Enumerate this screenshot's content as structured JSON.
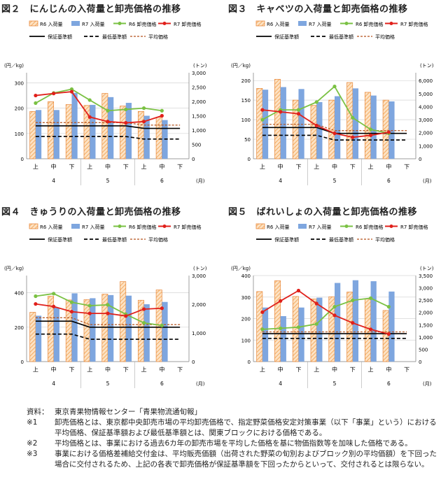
{
  "charts": [
    {
      "title": "図２　にんじんの入荷量と卸売価格の推移",
      "yticks": [
        0,
        100,
        200,
        300
      ],
      "ymax": 340,
      "yunit": "(円／kg)",
      "rticks": [
        0,
        500,
        1000,
        1500,
        2000,
        2500,
        3000
      ],
      "rmax": 3000,
      "runit": "(トン)",
      "r6_qty": [
        1650,
        1990,
        1890,
        1860,
        2280,
        1840,
        1650,
        1450
      ],
      "r7_qty": [
        1700,
        1700,
        2300,
        1880,
        2150,
        1950,
        1500,
        1350
      ],
      "r6_price": [
        220,
        260,
        275,
        232,
        190,
        195,
        200,
        190
      ],
      "r7_price": [
        250,
        258,
        265,
        165,
        147,
        142,
        147,
        170
      ],
      "base": 130,
      "min": 88,
      "avg": 143,
      "dropAt": 6,
      "base2": 120,
      "min2": 78,
      "avg2": 133
    },
    {
      "title": "図３　キャベツの入荷量と卸売価格の推移",
      "yticks": [
        0,
        50,
        100,
        150,
        200
      ],
      "ymax": 220,
      "yunit": "(円／kg)",
      "rticks": [
        0,
        1000,
        2000,
        3000,
        4000,
        5000,
        6000
      ],
      "rmax": 6600,
      "runit": "(トン)",
      "r6_qty": [
        5400,
        6100,
        4500,
        4100,
        4500,
        5850,
        5100,
        4500
      ],
      "r7_qty": [
        5300,
        5500,
        5350,
        4350,
        4800,
        5400,
        4850,
        4400
      ],
      "r6_price": [
        100,
        125,
        125,
        145,
        185,
        105,
        75,
        65
      ],
      "r7_price": [
        125,
        120,
        115,
        85,
        65,
        55,
        60,
        68
      ],
      "base": 80,
      "min": 60,
      "avg": 88,
      "dropAt": 4,
      "base2": 65,
      "min2": 48,
      "avg2": 72
    },
    {
      "title": "図４　きゅうりの入荷量と卸売価格の推移",
      "yticks": [
        0,
        200,
        400
      ],
      "ymax": 500,
      "yunit": "(円／kg)",
      "rticks": [
        0,
        1000,
        2000,
        3000
      ],
      "rmax": 3000,
      "runit": "(トン)",
      "r6_qty": [
        1720,
        2280,
        2150,
        2160,
        2350,
        2790,
        2140,
        2500
      ],
      "r7_qty": [
        1600,
        1880,
        2380,
        2210,
        2320,
        2300,
        2000,
        2080
      ],
      "r6_price": [
        380,
        395,
        345,
        325,
        330,
        275,
        225,
        210
      ],
      "r7_price": [
        335,
        320,
        290,
        280,
        280,
        265,
        305,
        310
      ],
      "base": 235,
      "min": 160,
      "avg": 255,
      "dropAt": 3,
      "base2": 200,
      "min2": 130,
      "avg2": 215
    },
    {
      "title": "図５　ばれいしょの入荷量と卸売価格の推移",
      "yticks": [
        0,
        100,
        200,
        300,
        400
      ],
      "ymax": 400,
      "yunit": "(円／kg)",
      "rticks": [
        0,
        500,
        1000,
        1500,
        2000,
        2500,
        3000,
        3500
      ],
      "rmax": 3500,
      "runit": "(トン)",
      "r6_qty": [
        2850,
        3290,
        2650,
        2550,
        2640,
        2830,
        2550,
        2080
      ],
      "r7_qty": [
        2200,
        1850,
        2200,
        2600,
        3200,
        3310,
        3270,
        2850
      ],
      "r6_price": [
        150,
        155,
        160,
        175,
        255,
        285,
        295,
        255
      ],
      "r7_price": [
        230,
        282,
        330,
        270,
        215,
        180,
        150,
        128
      ],
      "base": 130,
      "min": 108,
      "avg": 138,
      "dropAt": 9,
      "base2": 130,
      "min2": 108,
      "avg2": 138
    }
  ],
  "legend": {
    "r6_qty": "R6 入荷量",
    "r7_qty": "R7 入荷量",
    "r6_price": "R6 卸売価格",
    "r7_price": "R7 卸売価格",
    "base": "保証基準額",
    "min": "最低基準額",
    "avg": "平均価格"
  },
  "xaxis": {
    "periods": [
      "上",
      "中",
      "下",
      "上",
      "中",
      "下",
      "上",
      "中",
      "下"
    ],
    "months": [
      "4",
      "5",
      "6"
    ],
    "unit": "(月)"
  },
  "colors": {
    "r6_qty_stroke": "#e8873a",
    "r7_qty": "#7ea6df",
    "r6_price": "#7ac143",
    "r7_price": "#e0201b",
    "base": "#000000",
    "avg": "#b3501a"
  },
  "notes": [
    {
      "k": "資料：",
      "v": "東京青果物情報センター「青果物流通旬報」"
    },
    {
      "k": "※1",
      "v": "卸売価格とは、東京都中央卸売市場の平均卸売価格で、指定野菜価格安定対策事業（以下「事業」という）における平均価格、保証基準額および最低基準額とは、関東ブロックにおける価格である。"
    },
    {
      "k": "※2",
      "v": "平均価格とは、事業における過去6カ年の卸売市場を平均した価格を基に物価指数等を加味した価格である。"
    },
    {
      "k": "※3",
      "v": "事業における価格差補給交付金は、平均販売価額（出荷された野菜の旬別およびブロック別の平均価額）を下回った場合に交付されるため、上記の各表で卸売価格が保証基準額を下回ったからといって、交付されるとは限らない。"
    }
  ]
}
